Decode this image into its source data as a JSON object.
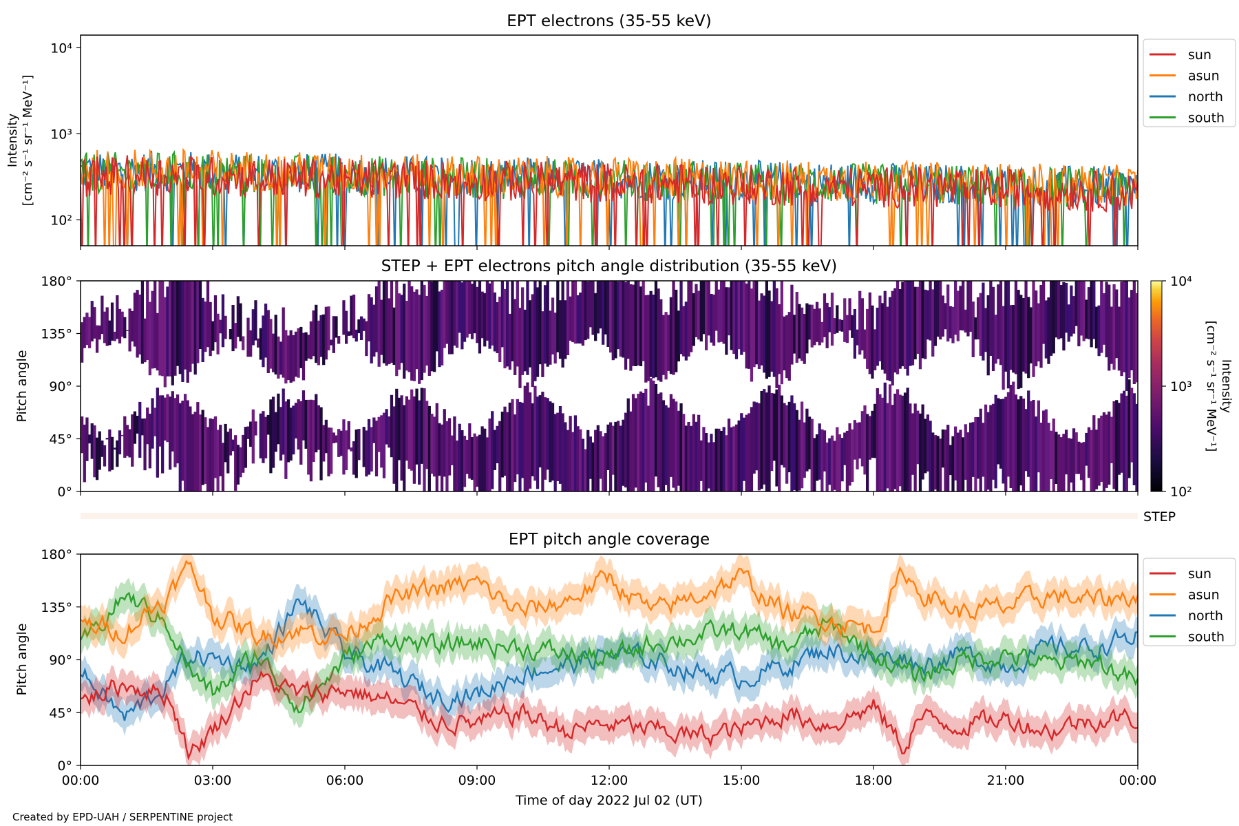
{
  "footer": "Created by EPD-UAH / SERPENTINE project",
  "colors": {
    "sun": "#d62728",
    "asun": "#ff7f0e",
    "north": "#1f77b4",
    "south": "#2ca02c"
  },
  "chart_data": [
    {
      "type": "line",
      "title": "EPT electrons (35-55 keV)",
      "ylabel": "Intensity",
      "ylabel_units": "[cm⁻² s⁻¹ sr⁻¹ MeV⁻¹]",
      "yscale": "log",
      "ylim": [
        50,
        14000
      ],
      "yticks": [
        {
          "value": 100,
          "label": "10²"
        },
        {
          "value": 1000,
          "label": "10³"
        },
        {
          "value": 10000,
          "label": "10⁴"
        }
      ],
      "xlim": [
        "2022-07-02 00:00",
        "2022-07-03 00:00"
      ],
      "legend_position": "outside-top-right",
      "series": [
        {
          "name": "sun",
          "x_hours": [
            0,
            2,
            4,
            6,
            8,
            10,
            12,
            14,
            16,
            18,
            20,
            22,
            24
          ],
          "values": [
            320,
            330,
            310,
            300,
            290,
            280,
            270,
            260,
            250,
            240,
            230,
            220,
            210
          ]
        },
        {
          "name": "asun",
          "x_hours": [
            0,
            2,
            4,
            6,
            8,
            10,
            12,
            14,
            16,
            18,
            20,
            22,
            24
          ],
          "values": [
            380,
            390,
            370,
            350,
            330,
            320,
            310,
            300,
            290,
            280,
            270,
            260,
            250
          ]
        },
        {
          "name": "north",
          "x_hours": [
            0,
            2,
            4,
            6,
            8,
            10,
            12,
            14,
            16,
            18,
            20,
            22,
            24
          ],
          "values": [
            360,
            370,
            350,
            340,
            320,
            310,
            300,
            290,
            280,
            270,
            260,
            250,
            240
          ]
        },
        {
          "name": "south",
          "x_hours": [
            0,
            2,
            4,
            6,
            8,
            10,
            12,
            14,
            16,
            18,
            20,
            22,
            24
          ],
          "values": [
            350,
            360,
            340,
            330,
            310,
            300,
            290,
            280,
            270,
            260,
            250,
            240,
            230
          ]
        }
      ]
    },
    {
      "type": "heatmap",
      "title": "STEP + EPT electrons pitch angle distribution (35-55 keV)",
      "ylabel": "Pitch angle",
      "ylim": [
        0,
        180
      ],
      "yticks": [
        "0°",
        "45°",
        "90°",
        "135°",
        "180°"
      ],
      "colorbar": {
        "label": "Intensity",
        "units": "[cm⁻² s⁻¹ sr⁻¹ MeV⁻¹]",
        "scale": "log",
        "range": [
          100,
          10000
        ],
        "ticks": [
          "10²",
          "10³",
          "10⁴"
        ],
        "colormap": "inferno"
      },
      "step_label": "STEP"
    },
    {
      "type": "line",
      "title": "EPT pitch angle coverage",
      "ylabel": "Pitch angle",
      "xlabel": "Time of day 2022 Jul 02 (UT)",
      "ylim": [
        0,
        180
      ],
      "yticks": [
        "0°",
        "45°",
        "90°",
        "135°",
        "180°"
      ],
      "xticks": [
        "00:00",
        "03:00",
        "06:00",
        "09:00",
        "12:00",
        "15:00",
        "18:00",
        "21:00",
        "00:00"
      ],
      "legend_position": "outside-top-right",
      "series": [
        {
          "name": "sun",
          "x_hours": [
            0,
            1,
            2,
            2.5,
            3,
            4,
            5,
            6,
            7,
            8,
            9,
            10,
            11,
            12,
            13,
            14,
            15,
            16,
            17,
            18,
            18.7,
            19,
            20,
            21,
            22,
            23,
            24
          ],
          "values": [
            55,
            70,
            60,
            10,
            30,
            75,
            60,
            65,
            55,
            40,
            35,
            45,
            30,
            35,
            30,
            25,
            30,
            45,
            35,
            50,
            15,
            40,
            35,
            40,
            30,
            40,
            40
          ]
        },
        {
          "name": "asun",
          "x_hours": [
            0,
            1,
            2,
            2.5,
            3,
            4,
            5,
            6,
            7,
            8,
            9,
            10,
            11,
            12,
            13,
            14,
            15,
            16,
            17,
            18,
            18.7,
            19,
            20,
            21,
            22,
            23,
            24
          ],
          "values": [
            120,
            115,
            145,
            170,
            130,
            110,
            115,
            110,
            140,
            150,
            155,
            130,
            140,
            160,
            130,
            145,
            160,
            130,
            125,
            115,
            165,
            150,
            130,
            135,
            145,
            140,
            145
          ]
        },
        {
          "name": "north",
          "x_hours": [
            0,
            1,
            2,
            2.5,
            3,
            4,
            5,
            6,
            7,
            8,
            9,
            10,
            11,
            12,
            13,
            14,
            15,
            16,
            17,
            18,
            18.7,
            19,
            20,
            21,
            22,
            23,
            24
          ],
          "values": [
            80,
            40,
            70,
            95,
            90,
            85,
            140,
            95,
            80,
            60,
            60,
            80,
            85,
            95,
            90,
            80,
            75,
            85,
            100,
            90,
            95,
            85,
            95,
            85,
            100,
            100,
            110
          ]
        },
        {
          "name": "south",
          "x_hours": [
            0,
            1,
            2,
            2.5,
            3,
            4,
            5,
            6,
            7,
            8,
            9,
            10,
            11,
            12,
            13,
            14,
            15,
            16,
            17,
            18,
            18.7,
            19,
            20,
            21,
            22,
            23,
            24
          ],
          "values": [
            100,
            145,
            120,
            80,
            60,
            95,
            50,
            90,
            110,
            100,
            105,
            100,
            95,
            90,
            105,
            110,
            115,
            100,
            120,
            95,
            80,
            75,
            90,
            95,
            85,
            90,
            70
          ]
        }
      ]
    }
  ]
}
